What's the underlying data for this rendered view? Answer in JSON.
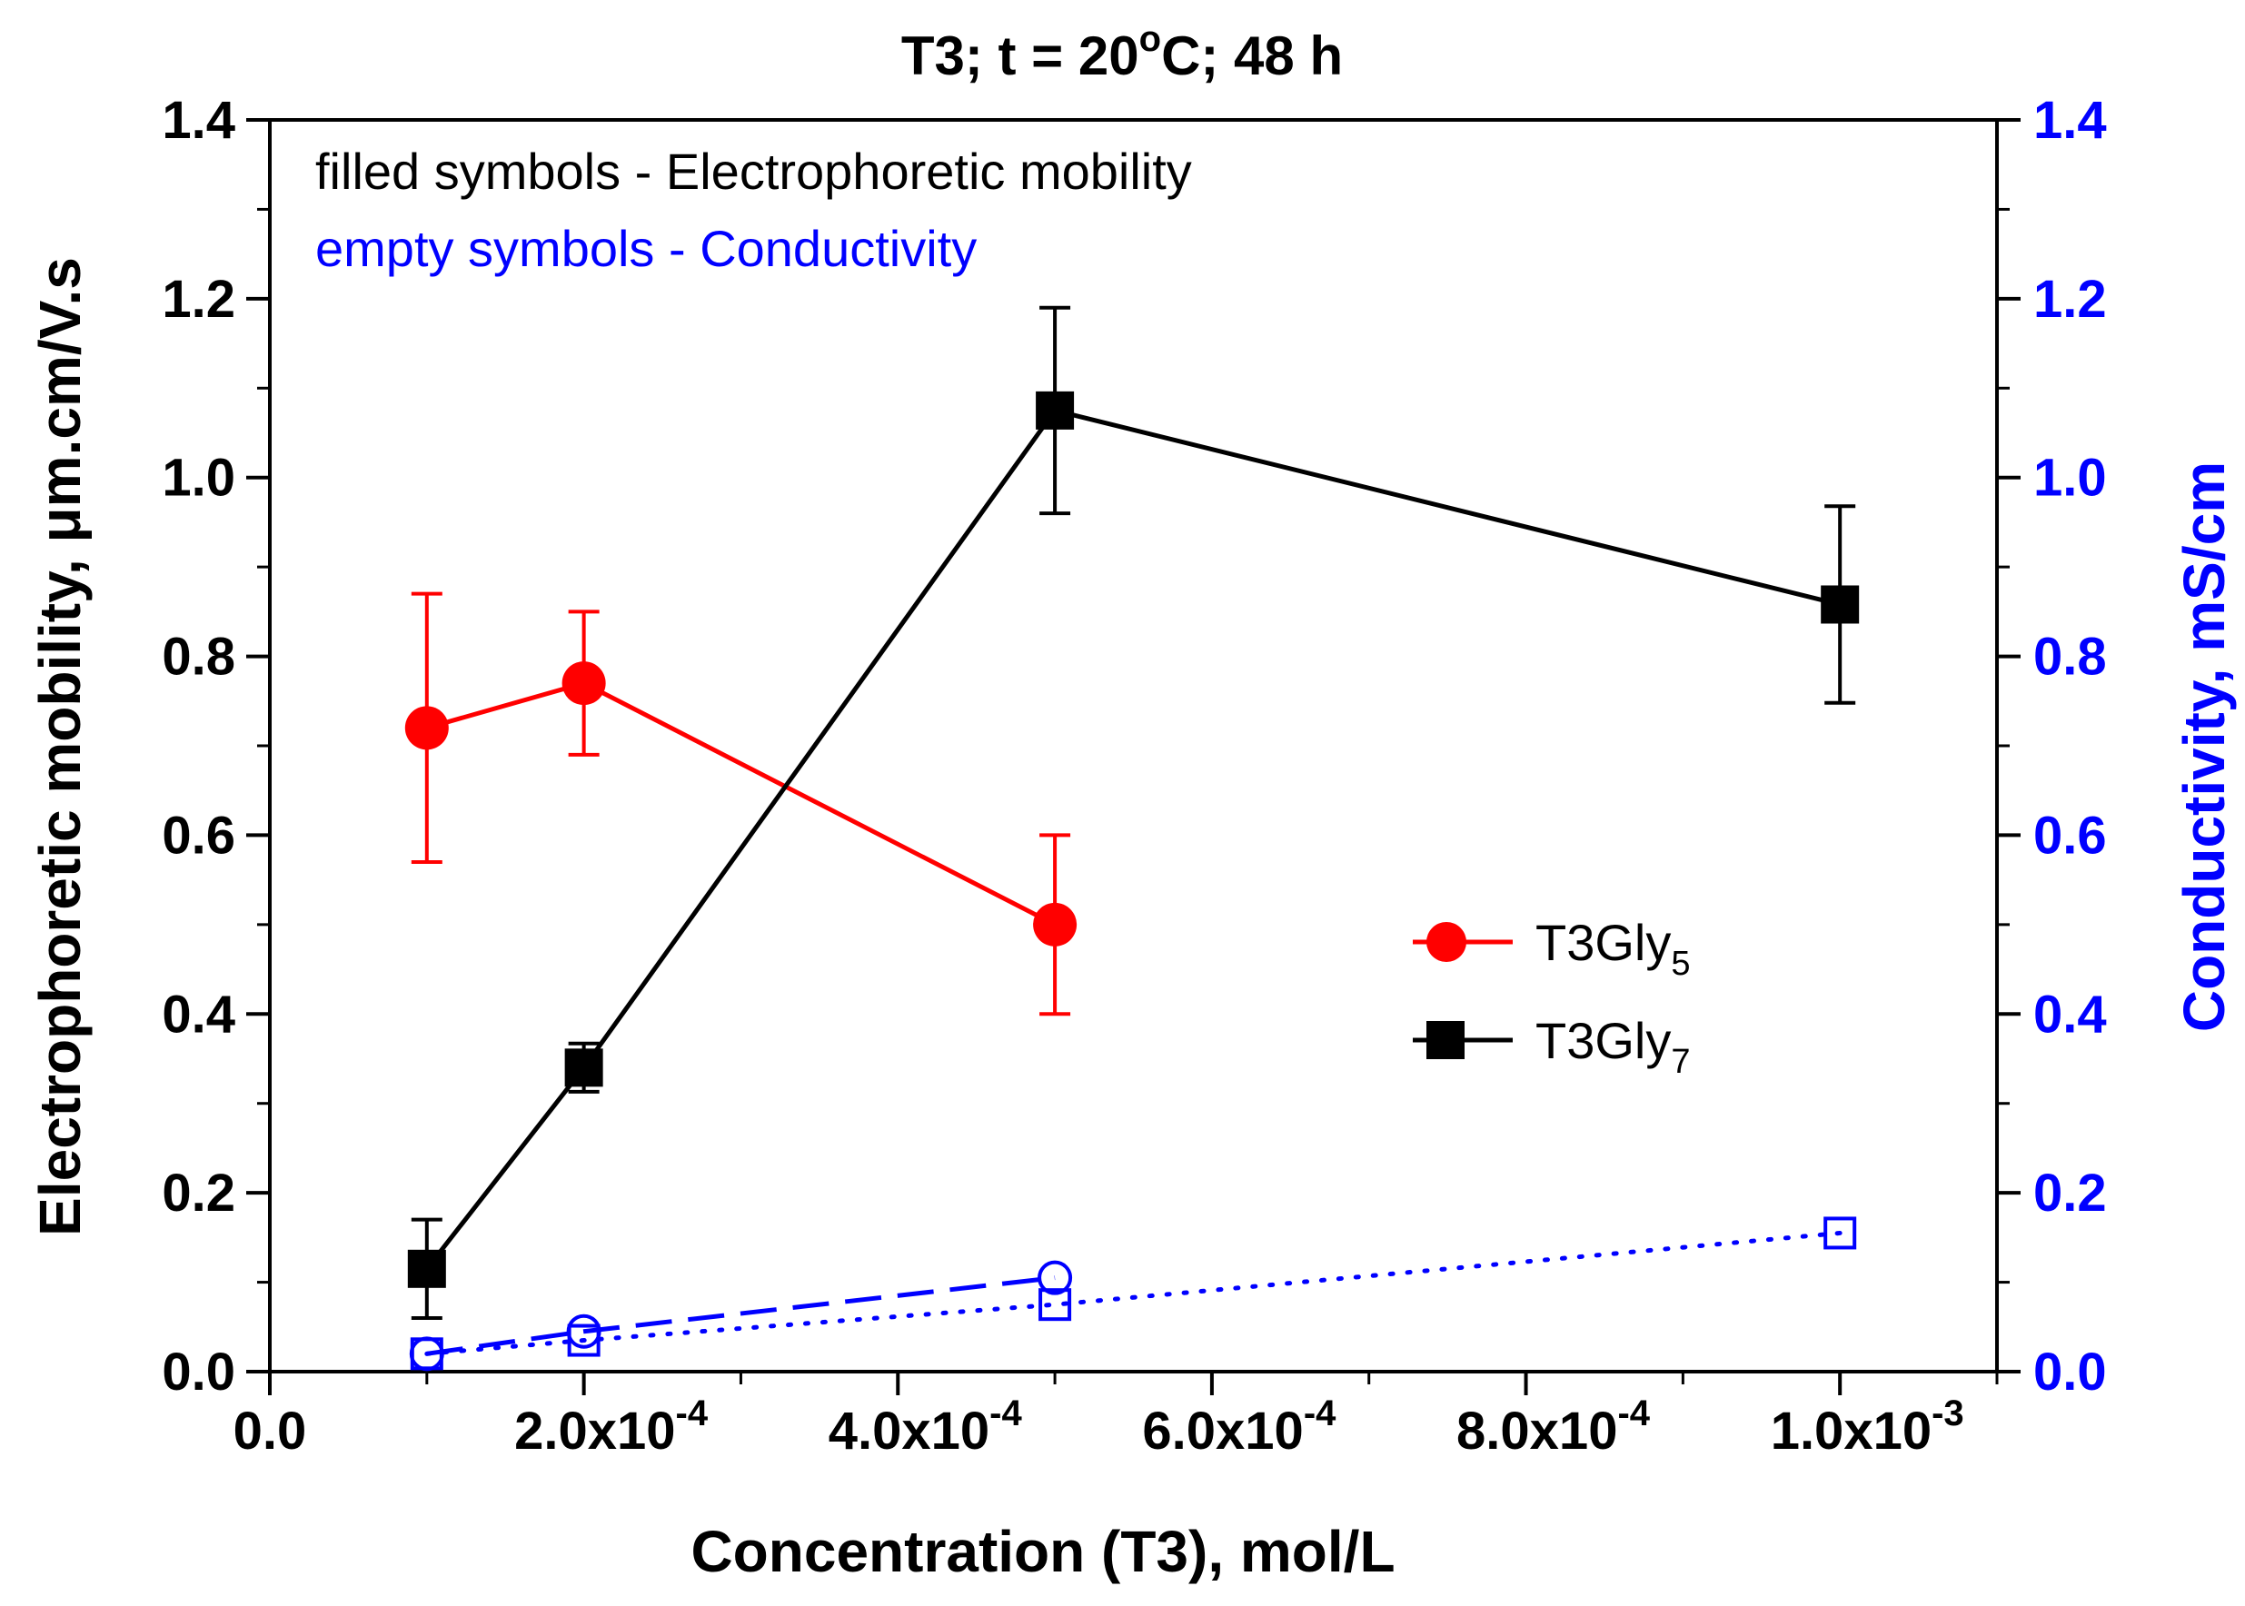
{
  "chart_data": {
    "type": "line",
    "title": "T3; t = 20°C; 48 h",
    "title_parts": {
      "prefix": "T3; t = 20",
      "degree": "o",
      "suffix": "C; 48 h"
    },
    "xlabel": "Concentration (T3), mol/L",
    "ylabel_left": "Electrophoretic mobility, μm.cm/V.s",
    "ylabel_right": "Conductivity, mS/cm",
    "xlim": [
      0,
      0.0011
    ],
    "ylim_left": [
      0,
      1.4
    ],
    "ylim_right": [
      0,
      1.4
    ],
    "x_ticks": [
      {
        "value": 0,
        "base": "0.0",
        "exp": ""
      },
      {
        "value": 0.0002,
        "base": "2.0x10",
        "exp": "-4"
      },
      {
        "value": 0.0004,
        "base": "4.0x10",
        "exp": "-4"
      },
      {
        "value": 0.0006,
        "base": "6.0x10",
        "exp": "-4"
      },
      {
        "value": 0.0008,
        "base": "8.0x10",
        "exp": "-4"
      },
      {
        "value": 0.001,
        "base": "1.0x10",
        "exp": "-3"
      }
    ],
    "y_ticks_left": [
      "0.0",
      "0.2",
      "0.4",
      "0.6",
      "0.8",
      "1.0",
      "1.2",
      "1.4"
    ],
    "y_ticks_right": [
      "0.0",
      "0.2",
      "0.4",
      "0.6",
      "0.8",
      "1.0",
      "1.2",
      "1.4"
    ],
    "annotations": [
      {
        "text": "filled symbols - Electrophoretic mobility",
        "color": "#000000"
      },
      {
        "text": "empty symbols - Conductivity",
        "color": "#0000ff"
      }
    ],
    "series": [
      {
        "name": "T3Gly5",
        "label_base": "T3Gly",
        "label_sub": "5",
        "axis": "left",
        "marker": "circle",
        "filled": true,
        "color": "#ff0000",
        "line": "solid",
        "x": [
          0.0001,
          0.0002,
          0.0005
        ],
        "y": [
          0.72,
          0.77,
          0.5
        ],
        "err": [
          0.15,
          0.08,
          0.1
        ]
      },
      {
        "name": "T3Gly7",
        "label_base": "T3Gly",
        "label_sub": "7",
        "axis": "left",
        "marker": "square",
        "filled": true,
        "color": "#000000",
        "line": "solid",
        "x": [
          0.0001,
          0.0002,
          0.0005,
          0.001
        ],
        "y": [
          0.115,
          0.34,
          1.075,
          0.858
        ],
        "err": [
          0.055,
          0.027,
          0.115,
          0.11
        ]
      },
      {
        "axis": "right",
        "marker": "circle",
        "filled": false,
        "color": "#0000ff",
        "line": "dashed",
        "x": [
          0.0001,
          0.0002,
          0.0005
        ],
        "y": [
          0.02,
          0.045,
          0.105
        ]
      },
      {
        "axis": "right",
        "marker": "square",
        "filled": false,
        "color": "#0000ff",
        "line": "dotted",
        "x": [
          0.0001,
          0.0002,
          0.0005,
          0.001
        ],
        "y": [
          0.02,
          0.035,
          0.075,
          0.155
        ]
      }
    ],
    "legend_position": "center-right",
    "grid": false
  }
}
